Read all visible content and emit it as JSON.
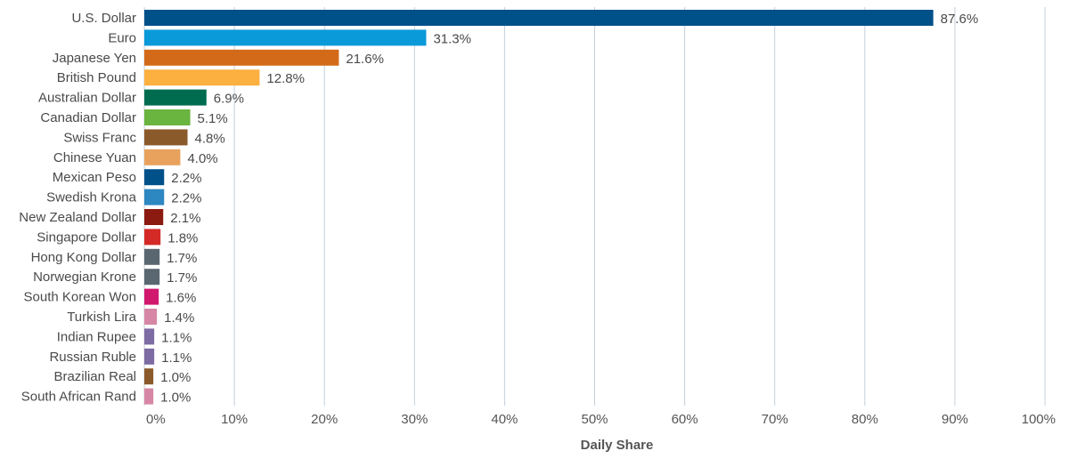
{
  "chart_data": {
    "type": "bar",
    "orientation": "horizontal",
    "categories": [
      "U.S. Dollar",
      "Euro",
      "Japanese Yen",
      "British Pound",
      "Australian Dollar",
      "Canadian Dollar",
      "Swiss Franc",
      "Chinese Yuan",
      "Mexican Peso",
      "Swedish Krona",
      "New Zealand Dollar",
      "Singapore Dollar",
      "Hong Kong Dollar",
      "Norwegian Krone",
      "South Korean Won",
      "Turkish Lira",
      "Indian Rupee",
      "Russian Ruble",
      "Brazilian Real",
      "South African Rand"
    ],
    "values": [
      87.6,
      31.3,
      21.6,
      12.8,
      6.9,
      5.1,
      4.8,
      4.0,
      2.2,
      2.2,
      2.1,
      1.8,
      1.7,
      1.7,
      1.6,
      1.4,
      1.1,
      1.1,
      1.0,
      1.0
    ],
    "value_labels": [
      "87.6%",
      "31.3%",
      "21.6%",
      "12.8%",
      "6.9%",
      "5.1%",
      "4.8%",
      "4.0%",
      "2.2%",
      "2.2%",
      "2.1%",
      "1.8%",
      "1.7%",
      "1.7%",
      "1.6%",
      "1.4%",
      "1.1%",
      "1.1%",
      "1.0%",
      "1.0%"
    ],
    "colors": [
      "#00508a",
      "#0a9ad9",
      "#d36a1a",
      "#fbb040",
      "#006c4f",
      "#6ab440",
      "#8b5a2b",
      "#e8a25d",
      "#00508a",
      "#2d87c0",
      "#8b1a10",
      "#d42a27",
      "#5b6770",
      "#5b6770",
      "#d0186e",
      "#d687a5",
      "#7d6ba3",
      "#7d6ba3",
      "#8b5a2b",
      "#d687a5"
    ],
    "xlim": [
      0,
      100
    ],
    "x_ticks": [
      0,
      10,
      20,
      30,
      40,
      50,
      60,
      70,
      80,
      90,
      100
    ],
    "x_tick_labels": [
      "0%",
      "10%",
      "20%",
      "30%",
      "40%",
      "50%",
      "60%",
      "70%",
      "80%",
      "90%",
      "100%"
    ],
    "xlabel": "Daily Share",
    "title": "",
    "grid": "vertical",
    "grid_color": "#c5d0d9"
  }
}
